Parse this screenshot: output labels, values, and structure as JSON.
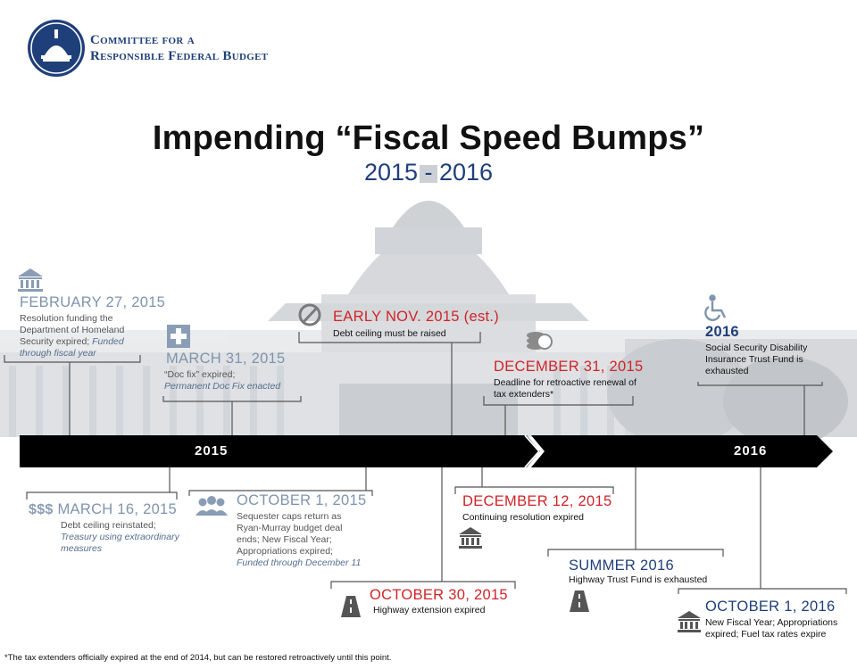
{
  "org": {
    "line1": "Committee for a",
    "line2": "Responsible Federal Budget"
  },
  "title": "Impending “Fiscal Speed Bumps”",
  "subtitle": "2015 - 2016",
  "timeline": {
    "year_2015": "2015",
    "year_2016": "2016"
  },
  "events": {
    "feb27": {
      "date": "FEBRUARY 27, 2015",
      "desc": "Resolution funding the Department of Homeland Security expired;",
      "note": "Funded through fiscal year"
    },
    "mar31": {
      "date": "MARCH 31, 2015",
      "desc": "“Doc fix” expired;",
      "note": "Permanent Doc Fix enacted"
    },
    "nov": {
      "date": "EARLY NOV. 2015 (est.)",
      "desc": "Debt ceiling must be raised"
    },
    "dec31": {
      "date": "DECEMBER 31, 2015",
      "desc": "Deadline for retroactive renewal of tax extenders*"
    },
    "y2016": {
      "date": "2016",
      "desc": "Social Security Disability Insurance Trust Fund is exhausted"
    },
    "mar16": {
      "prefix": "$$$",
      "date": "MARCH 16, 2015",
      "desc": "Debt ceiling reinstated;",
      "note": "Treasury using extraordinary measures"
    },
    "oct1_2015": {
      "date": "OCTOBER 1, 2015",
      "desc": "Sequester caps return as Ryan-Murray budget deal ends; New Fiscal Year; Appropriations expired;",
      "note": "Funded through December 11"
    },
    "dec12": {
      "date": "DECEMBER 12, 2015",
      "desc": "Continuing resolution expired"
    },
    "oct30": {
      "date": "OCTOBER 30, 2015",
      "desc": "Highway extension expired"
    },
    "summer": {
      "date": "SUMMER 2016",
      "desc": "Highway Trust Fund is exhausted"
    },
    "oct1_2016": {
      "date": "OCTOBER 1, 2016",
      "desc": "New Fiscal Year; Appropriations expired; Fuel tax rates expire"
    }
  },
  "footnote": "*The tax extenders officially expired at the end of 2014, but can be restored retroactively until this point.",
  "colors": {
    "navy": "#1f3f7a",
    "red": "#d02428",
    "grey_date": "#7f94ad",
    "timeline": "#000000"
  }
}
